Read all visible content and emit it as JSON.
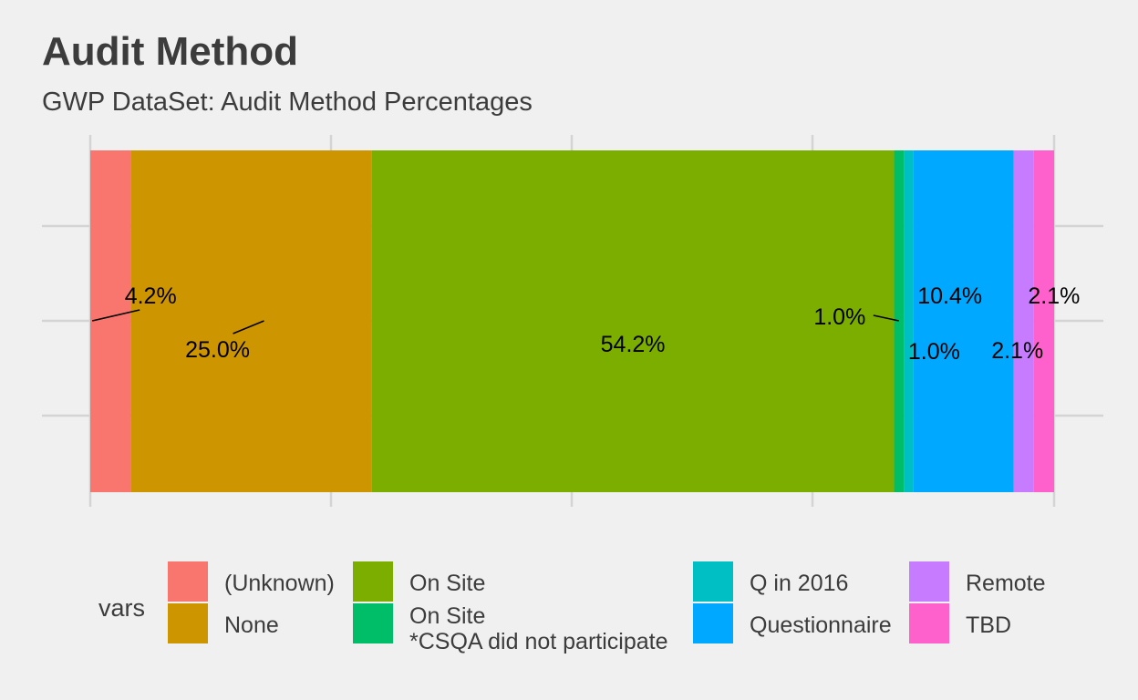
{
  "title": "Audit Method",
  "subtitle": "GWP DataSet: Audit Method Percentages",
  "chart_data": {
    "type": "bar",
    "orientation": "horizontal-stacked",
    "categories": [
      "(Unknown)",
      "None",
      "On Site",
      "On Site\n*CSQA did not participate",
      "Q in 2016",
      "Questionnaire",
      "Remote",
      "TBD"
    ],
    "values": [
      4.2,
      25.0,
      54.2,
      1.0,
      1.0,
      10.4,
      2.1,
      2.1
    ],
    "labels": [
      "4.2%",
      "25.0%",
      "54.2%",
      "1.0%",
      "1.0%",
      "10.4%",
      "2.1%",
      "2.1%"
    ],
    "colors": [
      "#f8766d",
      "#cd9600",
      "#7cae00",
      "#00be67",
      "#00bfc4",
      "#00a9ff",
      "#c77cff",
      "#ff61cc"
    ],
    "xlim": [
      0,
      100
    ],
    "grid": true,
    "legend": {
      "title": "vars",
      "position": "bottom",
      "columns": [
        [
          "(Unknown)",
          "None"
        ],
        [
          "On Site",
          "On Site\n*CSQA did not participate"
        ],
        [
          "Q in 2016",
          "Questionnaire"
        ],
        [
          "Remote",
          "TBD"
        ]
      ]
    }
  }
}
